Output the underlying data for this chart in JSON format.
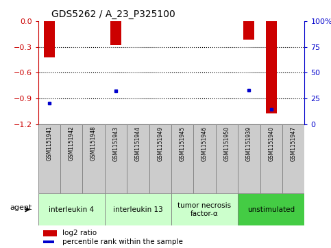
{
  "title": "GDS5262 / A_23_P325100",
  "samples": [
    "GSM1151941",
    "GSM1151942",
    "GSM1151948",
    "GSM1151943",
    "GSM1151944",
    "GSM1151949",
    "GSM1151945",
    "GSM1151946",
    "GSM1151950",
    "GSM1151939",
    "GSM1151940",
    "GSM1151947"
  ],
  "log2_ratio": [
    -0.42,
    0.0,
    0.0,
    -0.28,
    0.0,
    0.0,
    0.0,
    0.0,
    0.0,
    -0.22,
    -1.08,
    0.0
  ],
  "percentile_rank": [
    20.0,
    0.0,
    0.0,
    32.0,
    0.0,
    0.0,
    0.0,
    0.0,
    0.0,
    33.0,
    14.0,
    0.0
  ],
  "groups": [
    {
      "label": "interleukin 4",
      "samples": [
        "GSM1151941",
        "GSM1151942",
        "GSM1151948"
      ],
      "color": "#ccffcc"
    },
    {
      "label": "interleukin 13",
      "samples": [
        "GSM1151943",
        "GSM1151944",
        "GSM1151949"
      ],
      "color": "#ccffcc"
    },
    {
      "label": "tumor necrosis\nfactor-α",
      "samples": [
        "GSM1151945",
        "GSM1151946",
        "GSM1151950"
      ],
      "color": "#ccffcc"
    },
    {
      "label": "unstimulated",
      "samples": [
        "GSM1151939",
        "GSM1151940",
        "GSM1151947"
      ],
      "color": "#44cc44"
    }
  ],
  "ylim_left": [
    -1.2,
    0.0
  ],
  "ylim_right": [
    0.0,
    100.0
  ],
  "yticks_left": [
    -1.2,
    -0.9,
    -0.6,
    -0.3,
    0.0
  ],
  "yticks_right": [
    0,
    25,
    50,
    75,
    100
  ],
  "bar_color": "#cc0000",
  "point_color": "#0000cc",
  "bg_color": "#ffffff",
  "plot_bg_color": "#ffffff",
  "legend_items": [
    "log2 ratio",
    "percentile rank within the sample"
  ],
  "legend_colors": [
    "#cc0000",
    "#0000cc"
  ],
  "agent_label": "agent",
  "left_spine_color": "#cc0000",
  "right_spine_color": "#0000cc",
  "sample_box_color": "#cccccc",
  "bar_width": 0.5
}
